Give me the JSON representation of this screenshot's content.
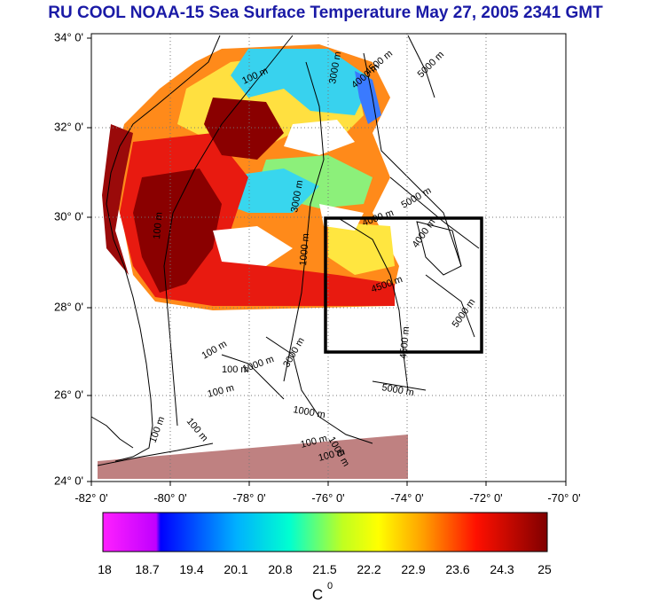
{
  "title": "RU COOL  NOAA-15 Sea Surface Temperature May 27, 2005 2341 GMT",
  "lat_ticks": [
    "34° 0'",
    "32° 0'",
    "30° 0'",
    "28° 0'",
    "26° 0'",
    "24° 0'"
  ],
  "lon_ticks": [
    "-82° 0'",
    "-80° 0'",
    "-78° 0'",
    "-76° 0'",
    "-74° 0'",
    "-72° 0'",
    "-70° 0'"
  ],
  "contour_labels": [
    "100 m",
    "100 m",
    "100 m",
    "100 m",
    "100 m",
    "100 m",
    "100 m",
    "100 m",
    "100 m",
    "1000 m",
    "1000 m",
    "1000 m",
    "1000 m",
    "3000 m",
    "3000 m",
    "3000 m",
    "4000 m",
    "4000 m",
    "4000 m",
    "4500 m",
    "4500 m",
    "4500 m",
    "5000 m",
    "5000 m",
    "5000 m",
    "5000 m"
  ],
  "colorbar": {
    "ticks": [
      "18",
      "18.7",
      "19.4",
      "20.1",
      "20.8",
      "21.5",
      "22.2",
      "22.9",
      "23.6",
      "24.3",
      "25"
    ],
    "unit": "C",
    "unit_sup": "0",
    "colors": [
      "#ff00ff",
      "#0000ff",
      "#00c8ff",
      "#00ffc0",
      "#ffff00",
      "#ff8000",
      "#ff0000",
      "#800000"
    ]
  },
  "map_colors": {
    "warm": "#8a0000",
    "red": "#e81a10",
    "orange": "#ff9a1a",
    "yellow": "#ffe640",
    "green": "#8cf07a",
    "cyan": "#38d6ee",
    "blue": "#3a7aff"
  }
}
